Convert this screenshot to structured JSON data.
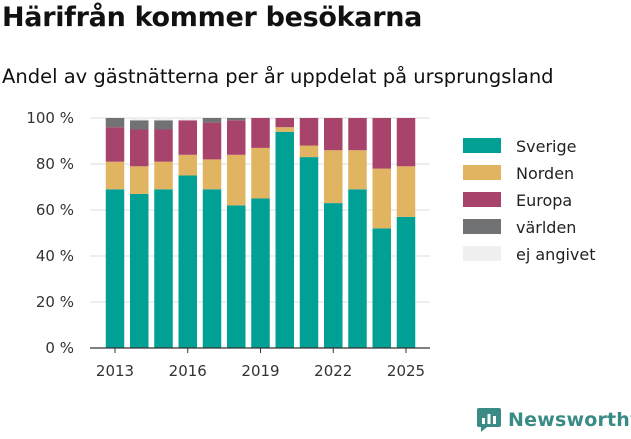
{
  "header": {
    "title": "Härifrån kommer besökarna",
    "subtitle": "Andel av gästnätterna per år uppdelat på ursprungsland"
  },
  "brand": {
    "name": "Newsworthy",
    "color": "#3a8a86"
  },
  "chart_data": {
    "type": "bar",
    "stacked": true,
    "x": [
      2013,
      2014,
      2015,
      2016,
      2017,
      2018,
      2019,
      2020,
      2021,
      2022,
      2023,
      2024,
      2025
    ],
    "x_tick_labels": [
      "2013",
      "2016",
      "2019",
      "2022",
      "2025"
    ],
    "y_tick_labels": [
      "0 %",
      "20 %",
      "40 %",
      "60 %",
      "80 %",
      "100 %"
    ],
    "ylim": [
      0,
      100
    ],
    "grid": true,
    "legend_position": "right",
    "series": [
      {
        "name": "Sverige",
        "color": "#00a095",
        "values": [
          69,
          67,
          69,
          75,
          69,
          62,
          65,
          94,
          83,
          63,
          69,
          52,
          57
        ]
      },
      {
        "name": "Norden",
        "color": "#e0b460",
        "values": [
          12,
          12,
          12,
          9,
          13,
          22,
          22,
          2,
          5,
          23,
          17,
          26,
          22
        ]
      },
      {
        "name": "Europa",
        "color": "#a8436b",
        "values": [
          15,
          16,
          14,
          15,
          16,
          15,
          13,
          4,
          12,
          14,
          14,
          22,
          21
        ]
      },
      {
        "name": "världen",
        "color": "#707274",
        "values": [
          4,
          4,
          4,
          0,
          2,
          1,
          0,
          0,
          0,
          0,
          0,
          0,
          0
        ]
      },
      {
        "name": "ej angivet",
        "color": "#f0f0f0",
        "values": [
          0,
          1,
          1,
          1,
          0,
          0,
          0,
          0,
          0,
          0,
          0,
          0,
          0
        ]
      }
    ]
  }
}
